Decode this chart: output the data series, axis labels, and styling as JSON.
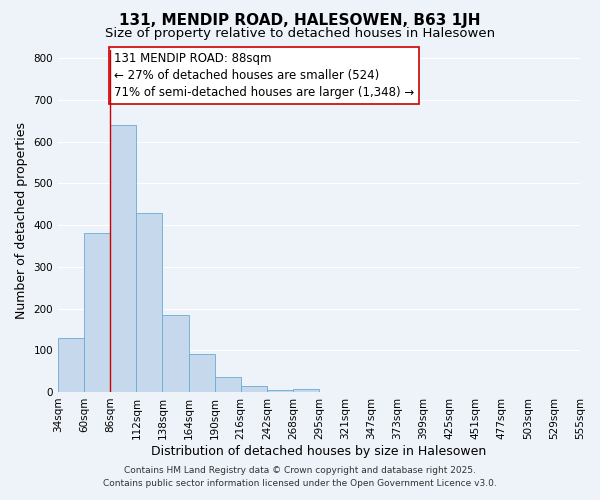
{
  "title": "131, MENDIP ROAD, HALESOWEN, B63 1JH",
  "subtitle": "Size of property relative to detached houses in Halesowen",
  "xlabel": "Distribution of detached houses by size in Halesowen",
  "ylabel": "Number of detached properties",
  "bar_values": [
    130,
    380,
    640,
    430,
    185,
    90,
    35,
    15,
    5,
    7,
    0,
    0,
    0,
    0,
    0,
    0,
    0,
    0,
    0,
    0
  ],
  "bin_labels": [
    "34sqm",
    "60sqm",
    "86sqm",
    "112sqm",
    "138sqm",
    "164sqm",
    "190sqm",
    "216sqm",
    "242sqm",
    "268sqm",
    "295sqm",
    "321sqm",
    "347sqm",
    "373sqm",
    "399sqm",
    "425sqm",
    "451sqm",
    "477sqm",
    "503sqm",
    "529sqm",
    "555sqm"
  ],
  "bar_color": "#c5d8ec",
  "bar_edge_color": "#6aaad4",
  "vline_x": 2,
  "vline_color": "#cc0000",
  "annotation_line1": "131 MENDIP ROAD: 88sqm",
  "annotation_line2": "← 27% of detached houses are smaller (524)",
  "annotation_line3": "71% of semi-detached houses are larger (1,348) →",
  "annotation_box_color": "#ffffff",
  "annotation_box_edge": "#cc0000",
  "ylim": [
    0,
    820
  ],
  "yticks": [
    0,
    100,
    200,
    300,
    400,
    500,
    600,
    700,
    800
  ],
  "background_color": "#eef2f9",
  "grid_color": "#ffffff",
  "footer_line1": "Contains HM Land Registry data © Crown copyright and database right 2025.",
  "footer_line2": "Contains public sector information licensed under the Open Government Licence v3.0.",
  "title_fontsize": 11,
  "subtitle_fontsize": 9.5,
  "axis_label_fontsize": 9,
  "tick_fontsize": 7.5,
  "annotation_fontsize": 8.5,
  "footer_fontsize": 6.5
}
